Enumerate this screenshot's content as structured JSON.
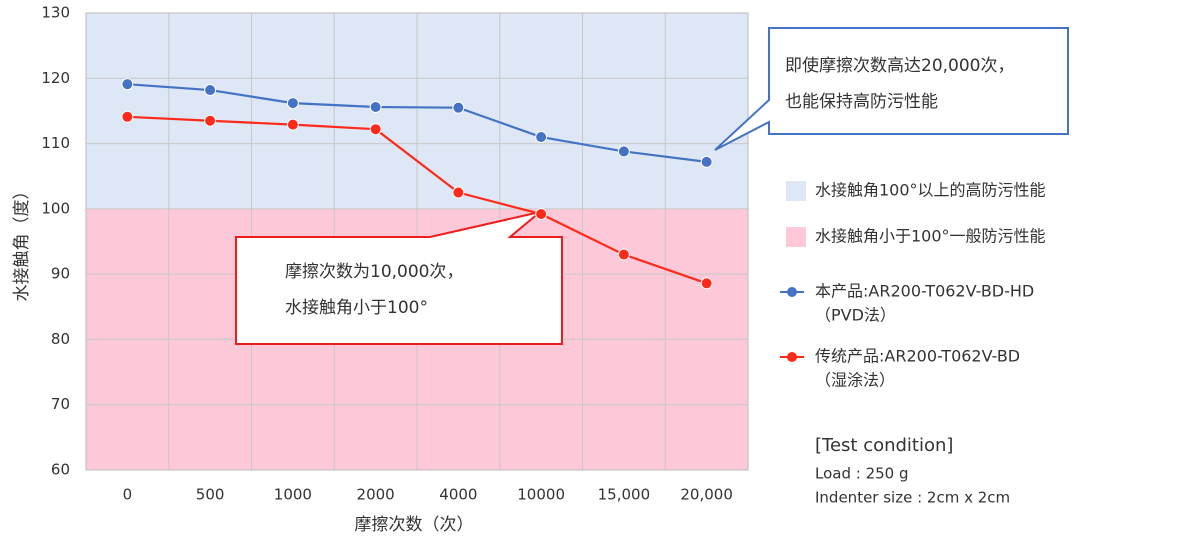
{
  "chart_data": {
    "type": "line",
    "x_label": "摩擦次数（次）",
    "y_label": "水接触角（度）",
    "categories": [
      "0",
      "500",
      "1000",
      "2000",
      "4000",
      "10000",
      "15,000",
      "20,000"
    ],
    "series": [
      {
        "name": "本产品:AR200-T062V-BD-HD",
        "note": "（PVD法）",
        "color": "#4472c4",
        "values": [
          119.1,
          118.2,
          116.2,
          115.6,
          115.5,
          111.0,
          108.8,
          107.2
        ]
      },
      {
        "name": "传统产品:AR200-T062V-BD",
        "note": "（湿涂法）",
        "color": "#ff2a1a",
        "values": [
          114.1,
          113.5,
          112.9,
          112.2,
          102.5,
          99.2,
          93.0,
          88.6
        ]
      }
    ],
    "bands": [
      {
        "name": "水接触角100°以上的高防污性能",
        "color": "#dde7f5",
        "from": 100,
        "to": 130
      },
      {
        "name": "水接触角小于100°一般防污性能",
        "color": "#fdc8d7",
        "from": 60,
        "to": 100
      }
    ],
    "ylim": [
      60,
      130
    ],
    "yticks": [
      60,
      70,
      80,
      90,
      100,
      110,
      120,
      130
    ],
    "grid": true,
    "annotations": [
      {
        "lines": [
          "即使摩擦次数高达20,000次，",
          "也能保持高防污性能"
        ],
        "color": "#4472c4"
      },
      {
        "lines": [
          "摩擦次数为10,000次，",
          "水接触角小于100°"
        ],
        "color": "#ee1c1c"
      }
    ],
    "test_condition": [
      "[Test condition]",
      "Load : 250 g",
      "Indenter size : 2cm x 2cm"
    ]
  }
}
